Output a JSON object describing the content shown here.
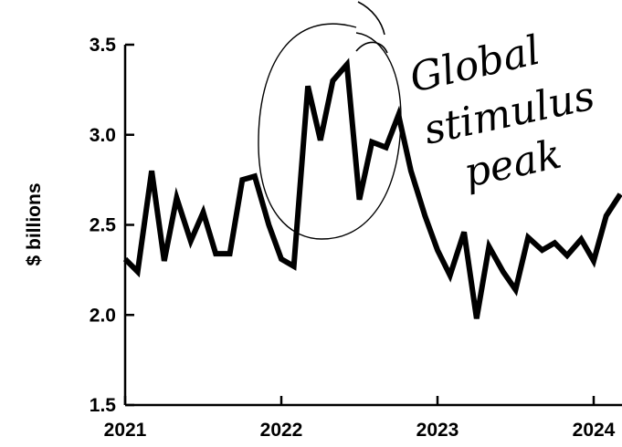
{
  "chart_data": {
    "type": "line",
    "title": "",
    "xlabel": "",
    "ylabel": "$ billions",
    "ylim": [
      1.5,
      3.5
    ],
    "xlim": [
      2021.0,
      2024.17
    ],
    "y_ticks": [
      "1.5",
      "2.0",
      "2.5",
      "3.0",
      "3.5"
    ],
    "x_ticks": [
      "2021",
      "2022",
      "2023",
      "2024"
    ],
    "grid": false,
    "series": [
      {
        "x": [
          2021.0,
          2021.08,
          2021.17,
          2021.25,
          2021.33,
          2021.42,
          2021.5,
          2021.58,
          2021.67,
          2021.75,
          2021.83,
          2021.92,
          2022.0,
          2022.08,
          2022.17,
          2022.25,
          2022.33,
          2022.42,
          2022.5,
          2022.58,
          2022.67,
          2022.75,
          2022.83,
          2022.92,
          2023.0,
          2023.08,
          2023.17,
          2023.25,
          2023.33,
          2023.42,
          2023.5,
          2023.58,
          2023.67,
          2023.75,
          2023.83,
          2023.92,
          2024.0,
          2024.08,
          2024.17
        ],
        "values": [
          2.31,
          2.24,
          2.8,
          2.3,
          2.65,
          2.41,
          2.57,
          2.34,
          2.34,
          2.75,
          2.77,
          2.5,
          2.31,
          2.27,
          3.27,
          2.97,
          3.3,
          3.39,
          2.64,
          2.96,
          2.93,
          3.11,
          2.8,
          2.55,
          2.36,
          2.22,
          2.46,
          1.98,
          2.38,
          2.24,
          2.14,
          2.43,
          2.36,
          2.4,
          2.33,
          2.42,
          2.3,
          2.55,
          2.67
        ]
      }
    ],
    "annotations": [
      {
        "lines": [
          "Global",
          "stimulus",
          "peak"
        ]
      }
    ]
  },
  "colors": {
    "line": "#000000",
    "axis": "#000000",
    "background": "#ffffff"
  }
}
